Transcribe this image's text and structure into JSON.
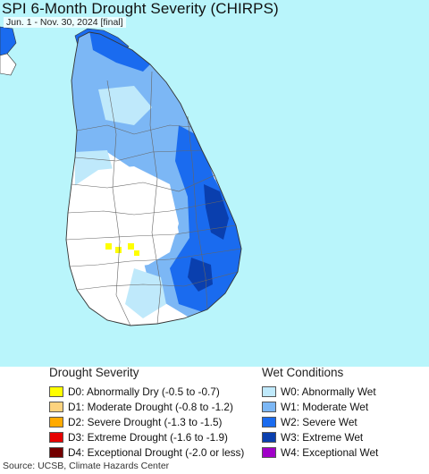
{
  "title": "SPI 6-Month Drought Severity (CHIRPS)",
  "subtitle": "Jun. 1 - Nov. 30, 2024 [final]",
  "colors": {
    "ocean": "#b9f5fb",
    "land_normal": "#ffffff",
    "W0": "#bfe9fb",
    "W1": "#7cb7f5",
    "W2": "#1a6bef",
    "W3": "#0a3fae",
    "D0": "#ffff00"
  },
  "legend": {
    "drought": {
      "heading": "Drought Severity",
      "items": [
        {
          "code": "D0",
          "label": "D0: Abnormally Dry (-0.5 to -0.7)",
          "color": "#ffff00"
        },
        {
          "code": "D1",
          "label": "D1: Moderate Drought (-0.8 to -1.2)",
          "color": "#fcd37f"
        },
        {
          "code": "D2",
          "label": "D2: Severe Drought (-1.3 to -1.5)",
          "color": "#ffaa00"
        },
        {
          "code": "D3",
          "label": "D3: Extreme Drought (-1.6 to -1.9)",
          "color": "#e60000"
        },
        {
          "code": "D4",
          "label": "D4: Exceptional Drought (-2.0 or less)",
          "color": "#730000"
        }
      ]
    },
    "wet": {
      "heading": "Wet Conditions",
      "items": [
        {
          "code": "W0",
          "label": "W0: Abnormally Wet",
          "color": "#bfe9fb"
        },
        {
          "code": "W1",
          "label": "W1: Moderate Wet",
          "color": "#7cb7f5"
        },
        {
          "code": "W2",
          "label": "W2: Severe Wet",
          "color": "#1a6bef"
        },
        {
          "code": "W3",
          "label": "W3: Extreme Wet",
          "color": "#0a3fae"
        },
        {
          "code": "W4",
          "label": "W4: Exceptional Wet",
          "color": "#a000c8"
        }
      ]
    }
  },
  "source": "Source: UCSB, Climate Hazards Center"
}
